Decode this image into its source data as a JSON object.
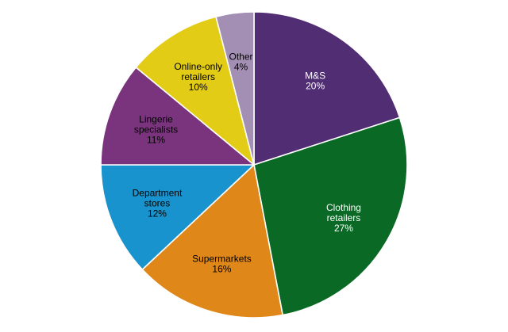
{
  "chart_data": {
    "type": "pie",
    "title": "",
    "start": "12 o'clock",
    "direction": "clockwise",
    "slices": [
      {
        "label": [
          "M&S"
        ],
        "value": 20,
        "value_label": "20%",
        "color": "#512D74",
        "label_color": "#FFFFFF"
      },
      {
        "label": [
          "Clothing",
          "retailers"
        ],
        "value": 27,
        "value_label": "27%",
        "color": "#0A6A25",
        "label_color": "#FFFFFF"
      },
      {
        "label": [
          "Supermarkets"
        ],
        "value": 16,
        "value_label": "16%",
        "color": "#DF8719",
        "label_color": "#000000"
      },
      {
        "label": [
          "Department",
          "stores"
        ],
        "value": 12,
        "value_label": "12%",
        "color": "#1993CD",
        "label_color": "#000000"
      },
      {
        "label": [
          "Lingerie",
          "specialists"
        ],
        "value": 11,
        "value_label": "11%",
        "color": "#7A347E",
        "label_color": "#000000"
      },
      {
        "label": [
          "Online-only",
          "retailers"
        ],
        "value": 10,
        "value_label": "10%",
        "color": "#E2CC15",
        "label_color": "#000000"
      },
      {
        "label": [
          "Other"
        ],
        "value": 4,
        "value_label": "4%",
        "color": "#A38FB3",
        "label_color": "#000000"
      }
    ]
  }
}
